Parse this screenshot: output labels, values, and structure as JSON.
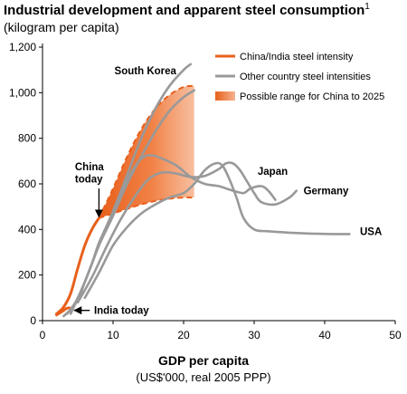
{
  "chart_data": {
    "type": "line",
    "title": "Industrial development and apparent steel consumption",
    "title_footnote": "1",
    "subtitle": "(kilogram per capita)",
    "xlabel": "GDP per capita",
    "xlabel_sub": "(US$'000, real 2005 PPP)",
    "xlim": [
      0,
      50
    ],
    "ylim": [
      0,
      1200
    ],
    "x_ticks": [
      0,
      10,
      20,
      30,
      40,
      50
    ],
    "y_ticks": [
      0,
      200,
      400,
      600,
      800,
      1000,
      1200
    ],
    "y_tick_labels": [
      "0",
      "200",
      "400",
      "600",
      "800",
      "1,000",
      "1,200"
    ],
    "grid": false,
    "legend_position": "top-right",
    "colors": {
      "china_india": "#e8601c",
      "other": "#999999",
      "range": "#e8601c"
    },
    "legend": [
      {
        "label": "China/India steel intensity",
        "kind": "line",
        "color": "#e8601c"
      },
      {
        "label": "Other country steel intensities",
        "kind": "line",
        "color": "#999999"
      },
      {
        "label": "Possible range for China to 2025",
        "kind": "area",
        "color": "#e8601c"
      }
    ],
    "series": [
      {
        "key": "china",
        "kind": "china_india",
        "x": [
          2.0,
          3.0,
          4.0,
          5.0,
          6.0,
          7.0,
          8.0
        ],
        "y": [
          30,
          60,
          120,
          230,
          330,
          400,
          450
        ]
      },
      {
        "key": "india",
        "kind": "china_india",
        "x": [
          2.0,
          2.5,
          3.0,
          3.5,
          4.0
        ],
        "y": [
          25,
          35,
          45,
          55,
          55
        ]
      },
      {
        "key": "south-korea",
        "kind": "other",
        "name": "South Korea",
        "x": [
          3,
          4,
          5,
          6,
          7,
          8,
          10,
          12,
          14,
          16,
          18,
          20,
          21
        ],
        "y": [
          20,
          50,
          100,
          170,
          250,
          340,
          480,
          640,
          800,
          930,
          1030,
          1100,
          1125
        ]
      },
      {
        "key": "steep-2",
        "kind": "other",
        "x": [
          3.5,
          5,
          6,
          7,
          8,
          10,
          12,
          14,
          16,
          18,
          20,
          21.5
        ],
        "y": [
          30,
          90,
          170,
          250,
          330,
          460,
          600,
          720,
          830,
          920,
          980,
          1010
        ]
      },
      {
        "key": "japan",
        "kind": "other",
        "name": "Japan",
        "x": [
          4,
          6,
          8,
          10,
          12,
          14,
          15.5,
          17,
          19,
          21,
          23,
          25,
          27,
          28.5,
          29.5,
          31,
          32,
          33
        ],
        "y": [
          30,
          170,
          330,
          480,
          620,
          710,
          725,
          710,
          680,
          630,
          600,
          590,
          570,
          560,
          580,
          590,
          570,
          530
        ]
      },
      {
        "key": "germany",
        "kind": "other",
        "name": "Germany",
        "x": [
          5,
          7,
          9,
          11,
          13,
          15,
          17,
          19,
          21,
          23,
          25,
          26,
          27,
          28,
          29,
          30,
          31,
          33,
          35,
          36
        ],
        "y": [
          80,
          190,
          320,
          440,
          540,
          620,
          650,
          645,
          630,
          635,
          665,
          690,
          690,
          660,
          610,
          560,
          520,
          510,
          540,
          570
        ]
      },
      {
        "key": "usa",
        "kind": "other",
        "name": "USA",
        "x": [
          6,
          8,
          10,
          12,
          14,
          16,
          18,
          20,
          21.5,
          23,
          24.5,
          25.5,
          26.5,
          27.5,
          28.5,
          30,
          32,
          35,
          38,
          41,
          43.5
        ],
        "y": [
          100,
          210,
          330,
          410,
          470,
          510,
          540,
          560,
          600,
          660,
          690,
          680,
          620,
          540,
          450,
          400,
          392,
          386,
          382,
          380,
          380
        ]
      }
    ],
    "range_area": {
      "upper": {
        "x": [
          8,
          10,
          12,
          14,
          16,
          18,
          20,
          21.5
        ],
        "y": [
          450,
          580,
          720,
          840,
          930,
          990,
          1025,
          1030
        ]
      },
      "lower": {
        "x": [
          8,
          10,
          12,
          14,
          16,
          18,
          20,
          21.5
        ],
        "y": [
          450,
          470,
          490,
          510,
          525,
          535,
          540,
          540
        ]
      }
    },
    "annotations": [
      {
        "key": "south-korea",
        "text": "South Korea",
        "x": 10.2,
        "y": 1080
      },
      {
        "key": "japan",
        "text": "Japan",
        "x": 30.5,
        "y": 640
      },
      {
        "key": "germany",
        "text": "Germany",
        "x": 37.0,
        "y": 555
      },
      {
        "key": "usa",
        "text": "USA",
        "x": 45.0,
        "y": 375
      },
      {
        "key": "china-today-1",
        "text": "China",
        "x": 4.6,
        "y": 660
      },
      {
        "key": "china-today-2",
        "text": "today",
        "x": 4.6,
        "y": 605
      },
      {
        "key": "india-today",
        "text": "India today",
        "x": 7.3,
        "y": 30
      }
    ],
    "arrows": [
      {
        "key": "china-today",
        "from": [
          8.0,
          580
        ],
        "to": [
          8.0,
          455
        ]
      },
      {
        "key": "india-today",
        "from": [
          6.7,
          45
        ],
        "to": [
          4.5,
          45
        ]
      }
    ]
  }
}
